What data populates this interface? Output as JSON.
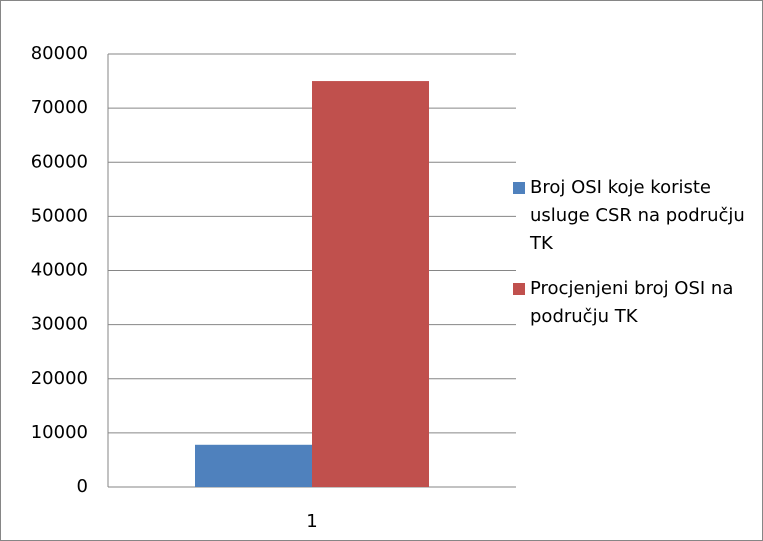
{
  "chart_data": {
    "type": "bar",
    "categories": [
      "1"
    ],
    "series": [
      {
        "name": "Broj OSI koje koriste usluge CSR na području TK",
        "color": "#4f81bd",
        "values": [
          7800
        ]
      },
      {
        "name": "Procjenjeni broj OSI na području TK",
        "color": "#c0504d",
        "values": [
          75000
        ]
      }
    ],
    "ylim": [
      0,
      80000
    ],
    "yticks": [
      0,
      10000,
      20000,
      30000,
      40000,
      50000,
      60000,
      70000,
      80000
    ],
    "grid": true,
    "legend": "right"
  }
}
